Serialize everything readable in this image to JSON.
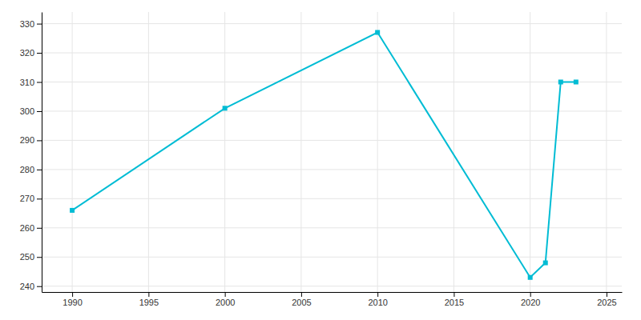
{
  "chart_data": {
    "type": "line",
    "x": [
      1990,
      2000,
      2010,
      2020,
      2021,
      2022,
      2023
    ],
    "values": [
      266,
      301,
      327,
      243,
      248,
      310,
      310
    ],
    "color": "#00bcd4",
    "marker": "square",
    "xlim": [
      1988,
      2026
    ],
    "ylim": [
      238,
      334
    ],
    "xticks": [
      1990,
      1995,
      2000,
      2005,
      2010,
      2015,
      2020,
      2025
    ],
    "yticks": [
      240,
      250,
      260,
      270,
      280,
      290,
      300,
      310,
      320,
      330
    ],
    "grid": true
  }
}
